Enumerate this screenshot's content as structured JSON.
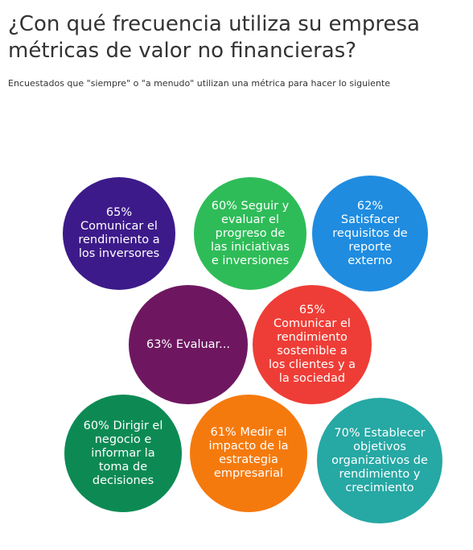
{
  "header": {
    "title": "¿Con qué frecuencia utiliza su empresa métricas de valor no financieras?",
    "subtitle": "Encuestados que \"siempre\" o \"a menudo\" utilizan una métrica para hacer lo siguiente"
  },
  "chart_data": {
    "type": "bubble",
    "title": "¿Con qué frecuencia utiliza su empresa métricas de valor no financieras?",
    "subtitle": "Encuestados que \"siempre\" o \"a menudo\" utilizan una métrica para hacer lo siguiente",
    "unit": "%",
    "items": [
      {
        "label": "65% Comunicar el rendimiento a los inversores",
        "value": 65,
        "color": "#3d1a8a"
      },
      {
        "label": "60% Seguir y evaluar el progreso de las iniciativas e inversiones",
        "value": 60,
        "color": "#2ebc58"
      },
      {
        "label": "62% Satisfacer requisitos de reporte externo",
        "value": 62,
        "color": "#1f8ce0"
      },
      {
        "label": "63% Evaluar...",
        "value": 63,
        "color": "#6e1760"
      },
      {
        "label": "65% Comunicar el rendimiento sostenible a los clientes y a la sociedad",
        "value": 65,
        "color": "#ee3d36"
      },
      {
        "label": "60% Dirigir el negocio e informar la toma de decisiones",
        "value": 60,
        "color": "#0d8a54"
      },
      {
        "label": "61% Medir el impacto de la estrategia empresarial",
        "value": 61,
        "color": "#f57a0d"
      },
      {
        "label": "70% Establecer objetivos organizativos de rendimiento y crecimiento",
        "value": 70,
        "color": "#26a8a4"
      }
    ]
  }
}
